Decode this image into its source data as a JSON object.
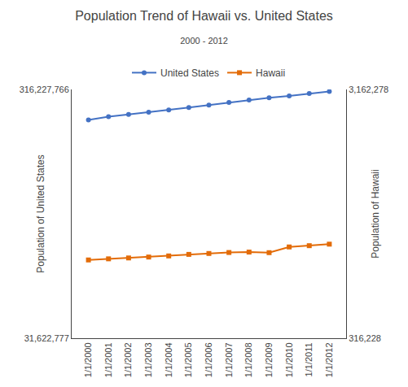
{
  "chart_data": {
    "type": "line",
    "title": "Population Trend of Hawaii vs. United States",
    "subtitle": "2000 - 2012",
    "ylabel": "Population of United States",
    "y2label": "Population of Hawaii",
    "categories": [
      "1/1/2000",
      "1/1/2001",
      "1/1/2002",
      "1/1/2003",
      "1/1/2004",
      "1/1/2005",
      "1/1/2006",
      "1/1/2007",
      "1/1/2008",
      "1/1/2009",
      "1/1/2010",
      "1/1/2011",
      "1/1/2012"
    ],
    "series": [
      {
        "name": "United States",
        "color": "#4472C4",
        "marker": "circle",
        "values": [
          281424600,
          284968955,
          287625193,
          290107933,
          292805298,
          295516599,
          298379912,
          301231207,
          304093966,
          306771529,
          308745538,
          311591917,
          313914040
        ]
      },
      {
        "name": "Hawaii",
        "color": "#E36C09",
        "marker": "square",
        "axis": "y2",
        "values": [
          1211537,
          1224398,
          1234514,
          1244898,
          1257608,
          1275194,
          1285498,
          1296818,
          1301617,
          1295178,
          1360301,
          1374810,
          1392313
        ]
      }
    ],
    "ylim": [
      31622777,
      316227766
    ],
    "yticks": [
      {
        "value": 31622777,
        "label": "31,622,777"
      },
      {
        "value": 316227766,
        "label": "316,227,766"
      }
    ],
    "y2lim": [
      316228,
      3162278
    ],
    "y2ticks": [
      {
        "value": 316228,
        "label": "316,228"
      },
      {
        "value": 3162278,
        "label": "3,162,278"
      }
    ],
    "grid": true,
    "legend": "top"
  }
}
